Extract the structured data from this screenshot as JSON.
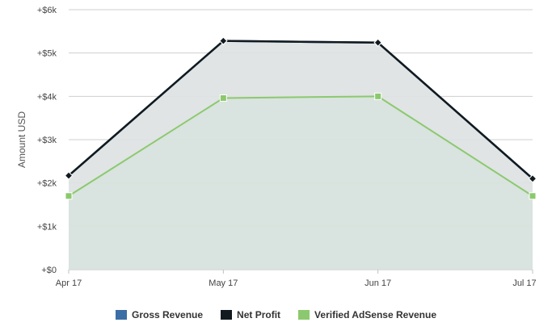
{
  "chart_data": {
    "type": "area",
    "categories": [
      "Apr 17",
      "May 17",
      "Jun 17",
      "Jul 17"
    ],
    "ylabel": "Amount USD",
    "ylim": [
      0,
      6000
    ],
    "yticks": [
      0,
      1000,
      2000,
      3000,
      4000,
      5000,
      6000
    ],
    "ytick_labels": [
      "+$0",
      "+$1k",
      "+$2k",
      "+$3k",
      "+$4k",
      "+$5k",
      "+$6k"
    ],
    "grid": true,
    "legend_position": "bottom-center",
    "series": [
      {
        "name": "Gross Revenue",
        "values": [
          2170,
          5280,
          5240,
          2100
        ],
        "color": "#3b6ea5",
        "fill": "#dde1e3"
      },
      {
        "name": "Net Profit",
        "values": [
          2170,
          5280,
          5240,
          2100
        ],
        "color": "#111a1f",
        "fill": "#dde1e3"
      },
      {
        "name": "Verified AdSense Revenue",
        "values": [
          1700,
          3960,
          4000,
          1700
        ],
        "color": "#8cc96e",
        "fill": "#d7e3dc"
      }
    ]
  }
}
